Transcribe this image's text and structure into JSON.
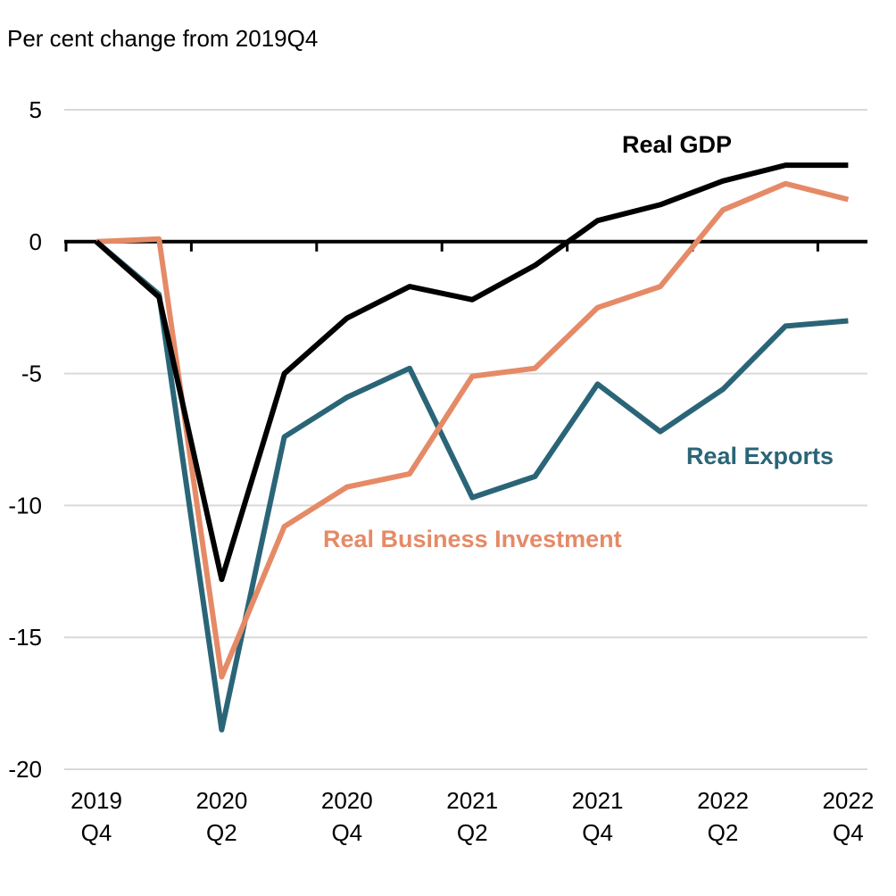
{
  "chart_data": {
    "type": "line",
    "ylabel": "Per cent change from 2019Q4",
    "ylim": [
      -20,
      5
    ],
    "yticks": [
      5,
      0,
      -5,
      -10,
      -15,
      -20
    ],
    "grid": true,
    "x": [
      "2019Q4",
      "2020Q1",
      "2020Q2",
      "2020Q3",
      "2020Q4",
      "2021Q1",
      "2021Q2",
      "2021Q3",
      "2021Q4",
      "2022Q1",
      "2022Q2",
      "2022Q3",
      "2022Q4"
    ],
    "xtick_labels": [
      {
        "index": 0,
        "line1": "2019",
        "line2": "Q4"
      },
      {
        "index": 2,
        "line1": "2020",
        "line2": "Q2"
      },
      {
        "index": 4,
        "line1": "2020",
        "line2": "Q4"
      },
      {
        "index": 6,
        "line1": "2021",
        "line2": "Q2"
      },
      {
        "index": 8,
        "line1": "2021",
        "line2": "Q4"
      },
      {
        "index": 10,
        "line1": "2022",
        "line2": "Q2"
      },
      {
        "index": 12,
        "line1": "2022",
        "line2": "Q4"
      }
    ],
    "series": [
      {
        "name": "Real GDP",
        "color": "#000000",
        "label_anchor": "end",
        "values": [
          0,
          -2.1,
          -12.8,
          -5.0,
          -2.9,
          -1.7,
          -2.2,
          -0.9,
          0.8,
          1.4,
          2.3,
          2.9,
          2.9
        ]
      },
      {
        "name": "Real Exports",
        "color": "#2a6577",
        "label_anchor": "end",
        "values": [
          0,
          -2.0,
          -18.5,
          -7.4,
          -5.9,
          -4.8,
          -9.7,
          -8.9,
          -5.4,
          -7.2,
          -5.6,
          -3.2,
          -3.0
        ]
      },
      {
        "name": "Real Business Investment",
        "color": "#e58a67",
        "label_anchor": "start",
        "values": [
          0,
          0.1,
          -16.5,
          -10.8,
          -9.3,
          -8.8,
          -5.1,
          -4.8,
          -2.5,
          -1.7,
          1.2,
          2.2,
          1.6
        ]
      }
    ]
  }
}
